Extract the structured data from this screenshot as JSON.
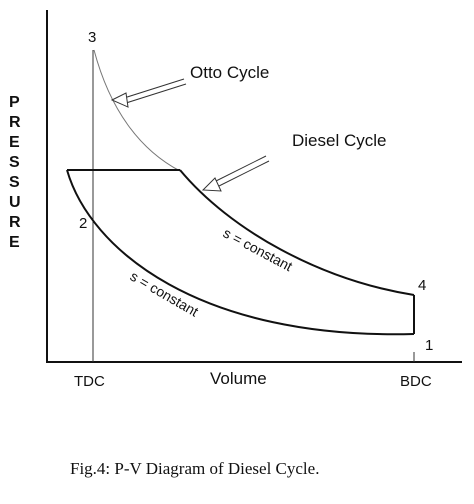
{
  "axes": {
    "y_label_letters": [
      "P",
      "R",
      "E",
      "S",
      "S",
      "U",
      "R",
      "E"
    ],
    "x_label": "Volume",
    "x_tick_left": "TDC",
    "x_tick_right": "BDC"
  },
  "points": {
    "p1": "1",
    "p2": "2",
    "p3": "3",
    "p4": "4"
  },
  "curves": {
    "upper": "s = constant",
    "lower": "s = constant"
  },
  "callouts": {
    "otto": "Otto Cycle",
    "diesel": "Diesel Cycle"
  },
  "caption": "Fig.4: P-V Diagram of Diesel Cycle."
}
